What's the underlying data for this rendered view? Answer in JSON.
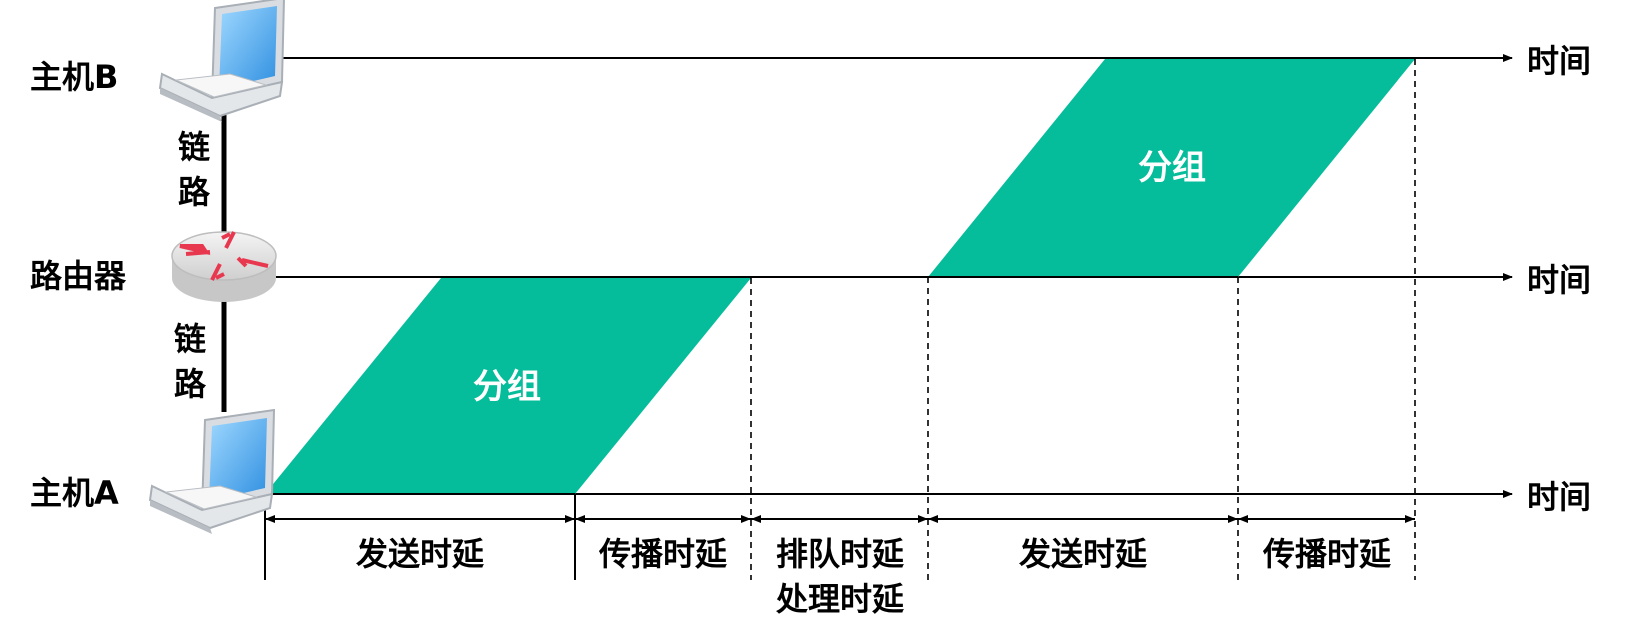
{
  "nodes": {
    "host_b": "主机B",
    "router": "路由器",
    "host_a": "主机A"
  },
  "links": {
    "upper": [
      "链",
      "路"
    ],
    "lower": [
      "链",
      "路"
    ]
  },
  "axis_label": "时间",
  "packet_label": "分组",
  "durations": {
    "send_1": "发送时延",
    "prop_1": "传播时延",
    "queue_line1": "排队时延",
    "queue_line2": "处理时延",
    "send_2": "发送时延",
    "prop_2": "传播时延"
  },
  "colors": {
    "packet": "#05BC9B",
    "line": "#000000"
  },
  "icons": {
    "host_b": "laptop-icon",
    "router": "router-icon",
    "host_a": "laptop-icon"
  }
}
